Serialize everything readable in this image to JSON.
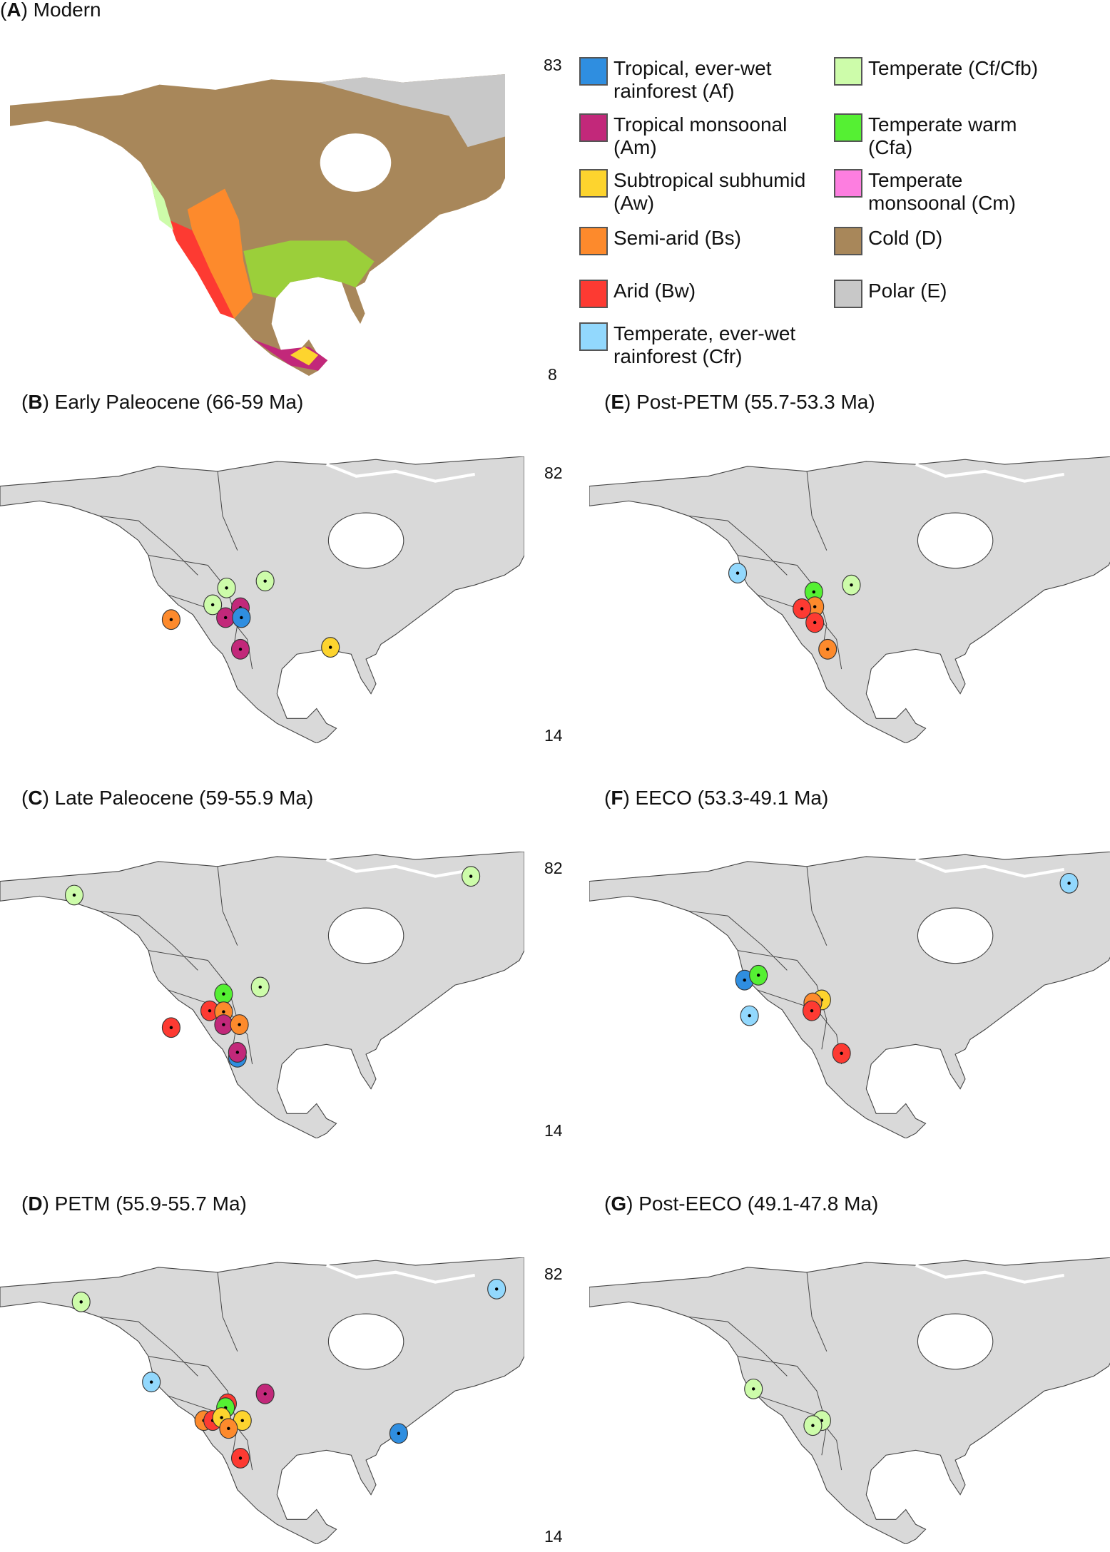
{
  "colors": {
    "Af": "#2f8ee0",
    "Am": "#c2287a",
    "Aw": "#fdd42e",
    "Bs": "#fd8a2c",
    "Bw": "#fd3a32",
    "Cfr": "#92d8fd",
    "Cf": "#cdfcaa",
    "Cfa": "#55f033",
    "Cm": "#fd7ee0",
    "D": "#a8875a",
    "E": "#c8c8c8",
    "land": "#d9d9d9"
  },
  "panelA": {
    "letter": "A",
    "title": ") Modern",
    "lat_top": "83",
    "lat_bottom": "8"
  },
  "legend": [
    {
      "code": "Af",
      "line1": "Tropical, ever-wet",
      "line2": "rainforest (Af)"
    },
    {
      "code": "Am",
      "line1": "Tropical monsoonal",
      "line2": "(Am)"
    },
    {
      "code": "Aw",
      "line1": "Subtropical subhumid",
      "line2": "(Aw)"
    },
    {
      "code": "Bs",
      "line1": "Semi-arid (Bs)",
      "line2": ""
    },
    {
      "code": "Bw",
      "line1": "Arid (Bw)",
      "line2": ""
    },
    {
      "code": "Cfr",
      "line1": "Temperate, ever-wet",
      "line2": "rainforest (Cfr)"
    },
    {
      "code": "Cf",
      "line1": "Temperate (Cf/Cfb)",
      "line2": ""
    },
    {
      "code": "Cfa",
      "line1": "Temperate warm",
      "line2": "(Cfa)"
    },
    {
      "code": "Cm",
      "line1": "Temperate",
      "line2": "monsoonal (Cm)"
    },
    {
      "code": "D",
      "line1": "Cold (D)",
      "line2": ""
    },
    {
      "code": "E",
      "line1": "Polar (E)",
      "line2": ""
    }
  ],
  "panels": {
    "B": {
      "letter": "B",
      "title": ") Early Paleocene (66-59 Ma)",
      "lat_top": "82",
      "lat_bottom": "14",
      "sites": [
        "Cf",
        "Cf",
        "Cf",
        "Am",
        "Am",
        "Af",
        "Am",
        "Bs",
        "Aw"
      ]
    },
    "E": {
      "letter": "E",
      "title": ") Post-PETM (55.7-53.3 Ma)",
      "sites": [
        "Cfr",
        "Cfa",
        "Cf",
        "Bs",
        "Bw",
        "Bw",
        "Bs"
      ]
    },
    "C": {
      "letter": "C",
      "title": ") Late Paleocene (59-55.9 Ma)",
      "lat_top": "82",
      "lat_bottom": "14",
      "sites": [
        "Cf",
        "Cf",
        "Cfa",
        "Cf",
        "Bw",
        "Bs",
        "Bw",
        "Am",
        "Bs",
        "Af",
        "Am"
      ]
    },
    "F": {
      "letter": "F",
      "title": ") EECO (53.3-49.1 Ma)",
      "sites": [
        "Cfr",
        "Af",
        "Cfa",
        "Cfr",
        "Aw",
        "Bs",
        "Bw",
        "Bw"
      ]
    },
    "D": {
      "letter": "D",
      "title": ") PETM (55.9-55.7 Ma)",
      "lat_top": "82",
      "lat_bottom": "14",
      "sites": [
        "Cf",
        "Cfr",
        "Cfr",
        "Am",
        "Bw",
        "Bs",
        "Cfa",
        "Aw",
        "Bw",
        "Aw",
        "Bs",
        "Bw",
        "Af"
      ]
    },
    "G": {
      "letter": "G",
      "title": ") Post-EECO (49.1-47.8 Ma)",
      "sites": [
        "Cf",
        "Cf",
        "Cf"
      ]
    }
  }
}
